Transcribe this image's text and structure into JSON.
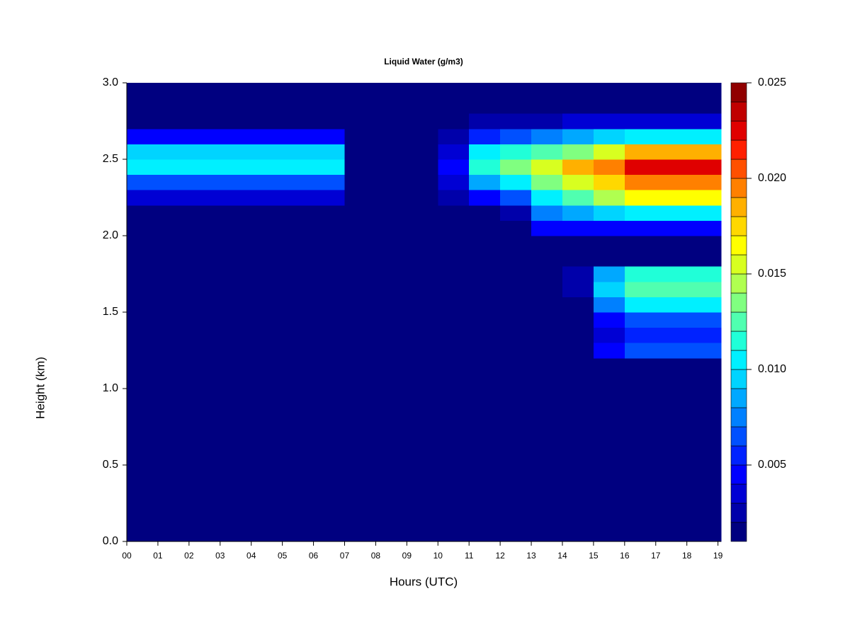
{
  "chart_data": {
    "type": "heatmap",
    "title": "Liquid Water (g/m3)",
    "x_label": "Hours (UTC)",
    "y_label": "Height (km)",
    "xlim": [
      0,
      19.1
    ],
    "ylim": [
      0,
      3.0
    ],
    "xticks": [
      {
        "value": 0,
        "label": "00"
      },
      {
        "value": 1,
        "label": "01"
      },
      {
        "value": 2,
        "label": "02"
      },
      {
        "value": 3,
        "label": "03"
      },
      {
        "value": 4,
        "label": "04"
      },
      {
        "value": 5,
        "label": "05"
      },
      {
        "value": 6,
        "label": "06"
      },
      {
        "value": 7,
        "label": "07"
      },
      {
        "value": 8,
        "label": "08"
      },
      {
        "value": 9,
        "label": "09"
      },
      {
        "value": 10,
        "label": "10"
      },
      {
        "value": 11,
        "label": "11"
      },
      {
        "value": 12,
        "label": "12"
      },
      {
        "value": 13,
        "label": "13"
      },
      {
        "value": 14,
        "label": "14"
      },
      {
        "value": 15,
        "label": "15"
      },
      {
        "value": 16,
        "label": "16"
      },
      {
        "value": 17,
        "label": "17"
      },
      {
        "value": 18,
        "label": "18"
      },
      {
        "value": 19,
        "label": "19"
      }
    ],
    "yticks": [
      {
        "value": 0,
        "label": "0.0"
      },
      0.5,
      {
        "value": 1,
        "label": "1.0"
      },
      1.5,
      {
        "value": 2,
        "label": "2.0"
      },
      2.5,
      {
        "value": 3,
        "label": "3.0"
      }
    ],
    "x_edges": [
      0,
      1,
      2,
      3,
      4,
      5,
      6,
      7,
      8,
      9,
      10,
      11,
      12,
      13,
      14,
      15,
      16,
      17,
      18,
      19.1
    ],
    "y_edges": [
      0,
      1.2,
      1.3,
      1.4,
      1.5,
      1.6,
      1.7,
      1.8,
      1.9,
      2.0,
      2.1,
      2.2,
      2.3,
      2.4,
      2.5,
      2.6,
      2.7,
      2.8,
      3.0
    ],
    "z": [
      [
        0.001,
        0.001,
        0.001,
        0.001,
        0.001,
        0.001,
        0.001,
        0.001,
        0.001,
        0.001,
        0.001,
        0.001,
        0.001,
        0.001,
        0.001,
        0.001,
        0.001,
        0.001,
        0.001
      ],
      [
        0.001,
        0.001,
        0.001,
        0.001,
        0.001,
        0.001,
        0.001,
        0.001,
        0.001,
        0.001,
        0.001,
        0.001,
        0.001,
        0.001,
        0.001,
        0.004,
        0.006,
        0.006,
        0.006
      ],
      [
        0.001,
        0.001,
        0.001,
        0.001,
        0.001,
        0.001,
        0.001,
        0.001,
        0.001,
        0.001,
        0.001,
        0.001,
        0.001,
        0.001,
        0.001,
        0.003,
        0.005,
        0.005,
        0.005
      ],
      [
        0.001,
        0.001,
        0.001,
        0.001,
        0.001,
        0.001,
        0.001,
        0.001,
        0.001,
        0.001,
        0.001,
        0.001,
        0.001,
        0.001,
        0.001,
        0.004,
        0.006,
        0.006,
        0.006
      ],
      [
        0.001,
        0.001,
        0.001,
        0.001,
        0.001,
        0.001,
        0.001,
        0.001,
        0.001,
        0.001,
        0.001,
        0.001,
        0.001,
        0.001,
        0.001,
        0.007,
        0.01,
        0.01,
        0.01
      ],
      [
        0.001,
        0.001,
        0.001,
        0.001,
        0.001,
        0.001,
        0.001,
        0.001,
        0.001,
        0.001,
        0.001,
        0.001,
        0.001,
        0.001,
        0.002,
        0.009,
        0.012,
        0.012,
        0.012
      ],
      [
        0.001,
        0.001,
        0.001,
        0.001,
        0.001,
        0.001,
        0.001,
        0.001,
        0.001,
        0.001,
        0.001,
        0.001,
        0.001,
        0.001,
        0.002,
        0.008,
        0.011,
        0.011,
        0.011
      ],
      [
        0.001,
        0.001,
        0.001,
        0.001,
        0.001,
        0.001,
        0.001,
        0.001,
        0.001,
        0.001,
        0.001,
        0.001,
        0.001,
        0.001,
        0.001,
        0.001,
        0.001,
        0.001,
        0.001
      ],
      [
        0.001,
        0.001,
        0.001,
        0.001,
        0.001,
        0.001,
        0.001,
        0.001,
        0.001,
        0.001,
        0.001,
        0.001,
        0.001,
        0.001,
        0.001,
        0.001,
        0.001,
        0.001,
        0.001
      ],
      [
        0.001,
        0.001,
        0.001,
        0.001,
        0.001,
        0.001,
        0.001,
        0.001,
        0.001,
        0.001,
        0.001,
        0.001,
        0.001,
        0.004,
        0.004,
        0.004,
        0.004,
        0.004,
        0.004
      ],
      [
        0.001,
        0.001,
        0.001,
        0.001,
        0.001,
        0.001,
        0.001,
        0.001,
        0.001,
        0.001,
        0.001,
        0.001,
        0.002,
        0.007,
        0.008,
        0.009,
        0.01,
        0.01,
        0.01
      ],
      [
        0.003,
        0.003,
        0.003,
        0.003,
        0.003,
        0.003,
        0.003,
        0.001,
        0.001,
        0.001,
        0.002,
        0.004,
        0.006,
        0.01,
        0.012,
        0.014,
        0.016,
        0.016,
        0.016
      ],
      [
        0.006,
        0.006,
        0.006,
        0.006,
        0.006,
        0.006,
        0.006,
        0.001,
        0.001,
        0.001,
        0.003,
        0.008,
        0.01,
        0.013,
        0.015,
        0.017,
        0.019,
        0.019,
        0.019
      ],
      [
        0.01,
        0.01,
        0.01,
        0.01,
        0.01,
        0.01,
        0.01,
        0.001,
        0.001,
        0.001,
        0.004,
        0.011,
        0.013,
        0.015,
        0.018,
        0.019,
        0.022,
        0.022,
        0.022
      ],
      [
        0.009,
        0.009,
        0.009,
        0.009,
        0.009,
        0.009,
        0.009,
        0.001,
        0.001,
        0.001,
        0.003,
        0.01,
        0.011,
        0.012,
        0.013,
        0.015,
        0.018,
        0.018,
        0.018
      ],
      [
        0.004,
        0.004,
        0.004,
        0.004,
        0.004,
        0.004,
        0.004,
        0.001,
        0.001,
        0.001,
        0.002,
        0.005,
        0.006,
        0.007,
        0.008,
        0.009,
        0.01,
        0.01,
        0.01
      ],
      [
        0.001,
        0.001,
        0.001,
        0.001,
        0.001,
        0.001,
        0.001,
        0.001,
        0.001,
        0.001,
        0.001,
        0.002,
        0.002,
        0.002,
        0.003,
        0.003,
        0.003,
        0.003,
        0.003
      ],
      [
        0.001,
        0.001,
        0.001,
        0.001,
        0.001,
        0.001,
        0.001,
        0.001,
        0.001,
        0.001,
        0.001,
        0.001,
        0.001,
        0.001,
        0.001,
        0.001,
        0.001,
        0.001,
        0.001
      ]
    ],
    "colorbar": {
      "lim": [
        0.001,
        0.025
      ],
      "ticks": [
        0.005,
        {
          "value": 0.01,
          "label": "0.010"
        },
        0.015,
        {
          "value": 0.02,
          "label": "0.020"
        },
        0.025
      ],
      "colors": [
        "#000080",
        "#0000aa",
        "#0000d4",
        "#0000ff",
        "#0022ff",
        "#0050ff",
        "#0080ff",
        "#00a8ff",
        "#00d4ff",
        "#00f0ff",
        "#20ffd8",
        "#50ffb0",
        "#80ff80",
        "#b0ff50",
        "#d8ff20",
        "#ffff00",
        "#ffd800",
        "#ffb000",
        "#ff8000",
        "#ff5000",
        "#ff2000",
        "#e00000",
        "#c00000",
        "#900000"
      ]
    }
  }
}
